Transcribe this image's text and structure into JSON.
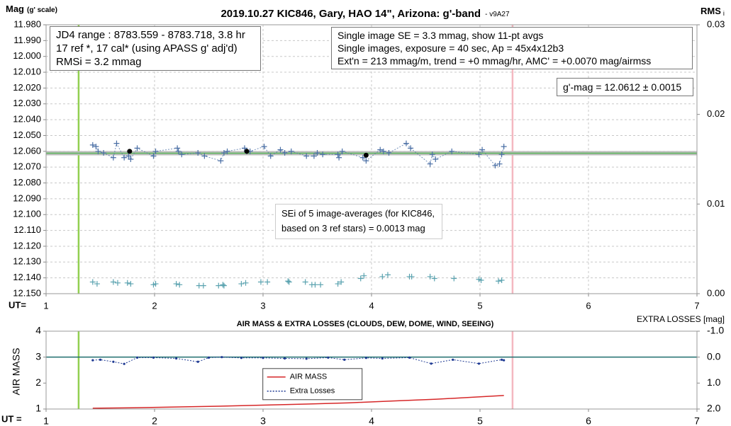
{
  "chart_data": [
    {
      "type": "scatter",
      "title": "2019.10.27 KIC846, Gary, HAO 14\", Arizona: g'-band",
      "subtitle": "- v9A27",
      "y_label": "Mag",
      "y_label_note": "(g' scale)",
      "y2_label": "RMS",
      "y2_label_sub": "i",
      "x_label": "UT=",
      "xlim": [
        1,
        7
      ],
      "xticks": [
        1,
        2,
        3,
        4,
        5,
        6,
        7
      ],
      "ylim": [
        11.98,
        12.15
      ],
      "y_inverted": true,
      "yticks": [
        {
          "value": 11.98,
          "label": "11.980"
        },
        {
          "value": 11.99,
          "label": "11.990"
        },
        {
          "value": 12.0,
          "label": "12.000"
        },
        {
          "value": 12.01,
          "label": "12.010"
        },
        {
          "value": 12.02,
          "label": "12.020"
        },
        {
          "value": 12.03,
          "label": "12.030"
        },
        {
          "value": 12.04,
          "label": "12.040"
        },
        {
          "value": 12.05,
          "label": "12.050"
        },
        {
          "value": 12.06,
          "label": "12.060"
        },
        {
          "value": 12.07,
          "label": "12.070"
        },
        {
          "value": 12.08,
          "label": "12.080"
        },
        {
          "value": 12.09,
          "label": "12.090"
        },
        {
          "value": 12.1,
          "label": "12.100"
        },
        {
          "value": 12.11,
          "label": "12.110"
        },
        {
          "value": 12.12,
          "label": "12.120"
        },
        {
          "value": 12.13,
          "label": "12.130"
        },
        {
          "value": 12.14,
          "label": "12.140"
        },
        {
          "value": 12.15,
          "label": "12.150"
        }
      ],
      "y2lim": [
        0,
        0.03
      ],
      "y2ticks": [
        {
          "value": 0,
          "label": "0.00"
        },
        {
          "value": 0.01,
          "label": "0.01"
        },
        {
          "value": 0.02,
          "label": "0.02"
        },
        {
          "value": 0.03,
          "label": "0.03"
        }
      ],
      "grid": true,
      "vlines": [
        {
          "x": 1.3,
          "color": "#92d050"
        },
        {
          "x": 5.3,
          "color": "#f4b8c0"
        }
      ],
      "hlines": [
        {
          "value": 12.0612,
          "color": "#bdbdbd"
        },
        {
          "value": 12.0612,
          "color": "#5cb85c"
        }
      ],
      "series": [
        {
          "color": "#4a6fa5",
          "marker": "plus",
          "line": "dashed",
          "x": [
            1.43,
            1.46,
            1.48,
            1.53,
            1.62,
            1.65,
            1.72,
            1.76,
            1.78,
            1.84,
            1.99,
            2.01,
            2.21,
            2.22,
            2.25,
            2.4,
            2.46,
            2.61,
            2.64,
            2.67,
            2.83,
            2.85,
            2.88,
            3.01,
            3.07,
            3.16,
            3.2,
            3.26,
            3.4,
            3.47,
            3.5,
            3.55,
            3.69,
            3.7,
            3.73,
            3.92,
            3.95,
            4.08,
            4.11,
            4.16,
            4.32,
            4.36,
            4.54,
            4.56,
            4.59,
            4.74,
            4.99,
            5.02,
            5.14,
            5.18,
            5.2,
            5.22
          ],
          "values": [
            12.056,
            12.057,
            12.06,
            12.061,
            12.064,
            12.055,
            12.064,
            12.063,
            12.065,
            12.058,
            12.063,
            12.06,
            12.058,
            12.06,
            12.062,
            12.061,
            12.063,
            12.066,
            12.061,
            12.06,
            12.058,
            12.06,
            12.06,
            12.057,
            12.063,
            12.059,
            12.061,
            12.06,
            12.063,
            12.063,
            12.061,
            12.062,
            12.062,
            12.064,
            12.06,
            12.064,
            12.066,
            12.059,
            12.06,
            12.061,
            12.055,
            12.058,
            12.068,
            12.062,
            12.065,
            12.06,
            12.062,
            12.059,
            12.069,
            12.068,
            12.062,
            12.057
          ]
        },
        {
          "color": "#000000",
          "marker": "dot",
          "x": [
            1.77,
            2.85,
            3.95
          ],
          "values": [
            12.06,
            12.06,
            12.0625
          ]
        },
        {
          "color": "#5ba3b0",
          "marker": "plus",
          "axis": "y2",
          "x": [
            1.43,
            1.47,
            1.62,
            1.66,
            1.75,
            1.78,
            1.99,
            2.01,
            2.2,
            2.23,
            2.41,
            2.45,
            2.59,
            2.63,
            2.64,
            2.8,
            2.84,
            2.98,
            3.04,
            3.23,
            3.24,
            3.39,
            3.45,
            3.48,
            3.53,
            3.69,
            3.72,
            3.9,
            3.93,
            4.1,
            4.15,
            4.35,
            4.37,
            4.54,
            4.58,
            4.76,
            4.99,
            5.01,
            5.17,
            5.2
          ],
          "values": [
            0.0013,
            0.0011,
            0.0013,
            0.0012,
            0.0012,
            0.0011,
            0.001,
            0.0011,
            0.0011,
            0.001,
            0.0009,
            0.0009,
            0.0009,
            0.001,
            0.0009,
            0.0011,
            0.0012,
            0.0013,
            0.0013,
            0.0014,
            0.0013,
            0.0013,
            0.001,
            0.001,
            0.001,
            0.0011,
            0.0013,
            0.0017,
            0.002,
            0.0019,
            0.0021,
            0.0019,
            0.0019,
            0.0019,
            0.0017,
            0.0017,
            0.0016,
            0.0015,
            0.0014,
            0.0015
          ]
        }
      ],
      "annotations": [
        {
          "lines": [
            "JD4 range : 8783.559 - 8783.718,  3.8  hr",
            "17 ref *, 17 cal* (using APASS g' adj'd)",
            "RMSi = 3.2 mmag"
          ]
        },
        {
          "lines": [
            "Single image SE = 3.3 mmag, show  11-pt avgs",
            "Single images, exposure = 40 sec, Ap = 45x4x12b3",
            "Ext'n = 213 mmag/m, trend =  +0 mmag/hr, AMC' = +0.0070 mag/airmss"
          ]
        },
        {
          "lines": [
            "g'-mag = 12.0612 ± 0.0015"
          ]
        },
        {
          "lines": [
            "SEi of 5 image-averages (for KIC846,",
            "based on 3 ref stars) = 0.0013 mag"
          ]
        }
      ]
    },
    {
      "type": "line",
      "title": "AIR MASS & EXTRA LOSSES (CLOUDS, DEW, DOME, WIND, SEEING)",
      "y_label": "AIR MASS",
      "y2_label": "EXTRA LOSSES [mag]",
      "x_label": "UT =",
      "xlim": [
        1,
        7
      ],
      "xticks": [
        1,
        2,
        3,
        4,
        5,
        6,
        7
      ],
      "ylim": [
        1,
        4
      ],
      "yticks": [
        1,
        2,
        3,
        4
      ],
      "y2lim": [
        -1,
        2
      ],
      "y2_inverted": true,
      "y2ticks": [
        {
          "value": -1,
          "label": "-1.0"
        },
        {
          "value": 0,
          "label": "0.0"
        },
        {
          "value": 1,
          "label": "1.0"
        },
        {
          "value": 2,
          "label": "2.0"
        }
      ],
      "grid": false,
      "legend": "center",
      "vlines": [
        {
          "x": 1.3,
          "color": "#92d050"
        },
        {
          "x": 5.3,
          "color": "#f4b8c0"
        }
      ],
      "hlines": [
        {
          "value": 0,
          "axis": "y2",
          "color": "#1f6e6e"
        }
      ],
      "series": [
        {
          "name": "AIR MASS",
          "color": "#d62728",
          "line": "solid",
          "x": [
            1.43,
            1.8,
            2.2,
            2.6,
            3.0,
            3.4,
            3.8,
            4.2,
            4.6,
            5.0,
            5.22
          ],
          "values": [
            1.03,
            1.05,
            1.08,
            1.11,
            1.15,
            1.19,
            1.24,
            1.31,
            1.38,
            1.47,
            1.52
          ]
        },
        {
          "name": "Extra Losses",
          "color": "#1f3a93",
          "line": "dashed",
          "marker": "point",
          "axis": "y2",
          "x": [
            1.43,
            1.5,
            1.62,
            1.72,
            1.84,
            1.99,
            2.2,
            2.4,
            2.5,
            2.62,
            2.8,
            3.0,
            3.2,
            3.4,
            3.6,
            3.75,
            3.95,
            4.1,
            4.35,
            4.55,
            4.75,
            4.99,
            5.2,
            5.22
          ],
          "values": [
            0.12,
            0.1,
            0.18,
            0.26,
            0.02,
            0.02,
            0.05,
            0.18,
            0.02,
            0.0,
            0.03,
            0.03,
            0.05,
            0.06,
            0.02,
            0.1,
            0.03,
            0.05,
            0.02,
            0.25,
            0.1,
            0.25,
            0.1,
            0.12
          ]
        }
      ]
    }
  ]
}
